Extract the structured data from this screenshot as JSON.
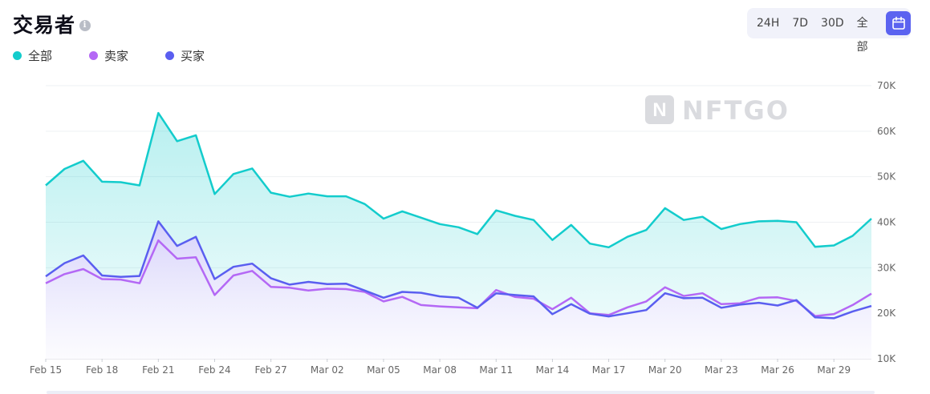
{
  "title": "交易者",
  "info_icon": "info-icon",
  "legend": [
    {
      "label": "全部",
      "color": "#13cccc"
    },
    {
      "label": "卖家",
      "color": "#b468f5"
    },
    {
      "label": "买家",
      "color": "#5a5ef0"
    }
  ],
  "range_buttons": [
    "24H",
    "7D",
    "30D",
    "全部"
  ],
  "calendar_icon": "calendar-icon",
  "watermark": "NFTGO",
  "chart_data": {
    "type": "area",
    "x": [
      "Feb 15",
      "Feb 16",
      "Feb 17",
      "Feb 18",
      "Feb 19",
      "Feb 20",
      "Feb 21",
      "Feb 22",
      "Feb 23",
      "Feb 24",
      "Feb 25",
      "Feb 26",
      "Feb 27",
      "Feb 28",
      "Mar 01",
      "Mar 02",
      "Mar 03",
      "Mar 04",
      "Mar 05",
      "Mar 06",
      "Mar 07",
      "Mar 08",
      "Mar 09",
      "Mar 10",
      "Mar 11",
      "Mar 12",
      "Mar 13",
      "Mar 14",
      "Mar 15",
      "Mar 16",
      "Mar 17",
      "Mar 18",
      "Mar 19",
      "Mar 20",
      "Mar 21",
      "Mar 22",
      "Mar 23",
      "Mar 24",
      "Mar 25",
      "Mar 26",
      "Mar 27",
      "Mar 28",
      "Mar 29",
      "Mar 30",
      "Mar 31"
    ],
    "x_ticks": [
      "Feb 15",
      "Feb 18",
      "Feb 21",
      "Feb 24",
      "Feb 27",
      "Mar 02",
      "Mar 05",
      "Mar 08",
      "Mar 11",
      "Mar 14",
      "Mar 17",
      "Mar 20",
      "Mar 23",
      "Mar 26",
      "Mar 29"
    ],
    "y_ticks": [
      "10K",
      "20K",
      "30K",
      "40K",
      "50K",
      "60K",
      "70K"
    ],
    "ylim": [
      10000,
      70000
    ],
    "grid": true,
    "series": [
      {
        "name": "全部",
        "color": "#13cccc",
        "values": [
          48100,
          51700,
          53500,
          48900,
          48800,
          48100,
          64000,
          57800,
          59100,
          46200,
          50600,
          51800,
          46500,
          45600,
          46300,
          45700,
          45700,
          44000,
          40800,
          42400,
          41000,
          39600,
          38900,
          37400,
          42600,
          41400,
          40500,
          36100,
          39400,
          35300,
          34500,
          36800,
          38300,
          43100,
          40500,
          41200,
          38500,
          39600,
          40200,
          40300,
          40000,
          34600,
          34900,
          37000,
          40800
        ]
      },
      {
        "name": "卖家",
        "color": "#b468f5",
        "values": [
          26600,
          28600,
          29700,
          27500,
          27400,
          26600,
          36000,
          32000,
          32300,
          24000,
          28300,
          29300,
          25800,
          25600,
          25000,
          25400,
          25300,
          24700,
          22600,
          23600,
          21800,
          21500,
          21300,
          21100,
          25100,
          23600,
          23200,
          20900,
          23400,
          20000,
          19600,
          21300,
          22600,
          25700,
          23800,
          24400,
          22000,
          22200,
          23400,
          23500,
          22700,
          19400,
          19800,
          21800,
          24300
        ]
      },
      {
        "name": "买家",
        "color": "#5a5ef0",
        "values": [
          28100,
          31000,
          32700,
          28300,
          28000,
          28200,
          40200,
          34800,
          36800,
          27500,
          30200,
          30900,
          27700,
          26300,
          26900,
          26400,
          26500,
          25000,
          23400,
          24700,
          24500,
          23700,
          23400,
          21200,
          24400,
          24000,
          23700,
          19800,
          22000,
          19900,
          19300,
          20000,
          20700,
          24400,
          23300,
          23400,
          21200,
          21900,
          22300,
          21700,
          22900,
          19100,
          18900,
          20400,
          21600
        ]
      }
    ]
  }
}
